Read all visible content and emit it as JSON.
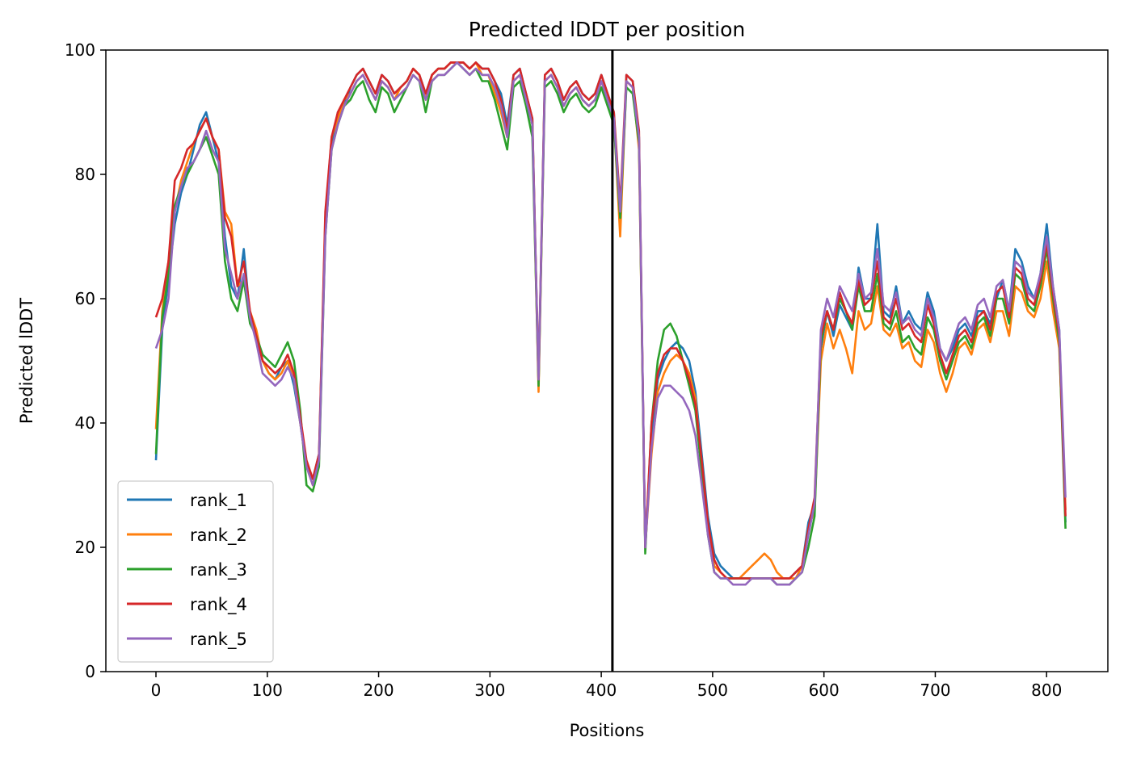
{
  "chart_data": {
    "type": "line",
    "title": "Predicted lDDT per position",
    "xlabel": "Positions",
    "ylabel": "Predicted lDDT",
    "xlim": [
      -45,
      855
    ],
    "ylim": [
      0,
      100
    ],
    "xticks": [
      0,
      100,
      200,
      300,
      400,
      500,
      600,
      700,
      800
    ],
    "yticks": [
      0,
      20,
      40,
      60,
      80,
      100
    ],
    "grid": false,
    "legend_position": "lower-left",
    "divider_x": 410,
    "divider_color": "#000000",
    "x_start": 0,
    "x_end": 817,
    "series": [
      {
        "name": "rank_1",
        "color": "#1f77b4",
        "values": [
          34,
          55,
          63,
          72,
          77,
          80,
          84,
          88,
          90,
          86,
          82,
          70,
          62,
          60,
          68,
          57,
          54,
          50,
          48,
          47,
          49,
          50,
          46,
          40,
          33,
          31,
          35,
          72,
          85,
          90,
          91,
          94,
          96,
          97,
          95,
          93,
          96,
          95,
          93,
          94,
          95,
          97,
          96,
          93,
          96,
          97,
          97,
          98,
          98,
          98,
          97,
          98,
          97,
          97,
          95,
          93,
          88,
          96,
          97,
          93,
          89,
          46,
          96,
          97,
          95,
          92,
          94,
          95,
          93,
          92,
          93,
          96,
          93,
          90,
          72,
          96,
          95,
          86,
          20,
          38,
          47,
          50,
          52,
          53,
          52,
          50,
          45,
          35,
          25,
          19,
          17,
          16,
          15,
          15,
          15,
          15,
          15,
          15,
          15,
          15,
          15,
          15,
          16,
          17,
          24,
          27,
          52,
          58,
          54,
          59,
          57,
          55,
          65,
          60,
          60,
          72,
          58,
          57,
          62,
          56,
          58,
          56,
          55,
          61,
          58,
          52,
          50,
          52,
          55,
          56,
          54,
          58,
          58,
          56,
          60,
          63,
          58,
          68,
          66,
          62,
          60,
          64,
          72,
          62,
          55,
          24
        ]
      },
      {
        "name": "rank_2",
        "color": "#ff7f0e",
        "values": [
          39,
          58,
          66,
          74,
          79,
          82,
          85,
          87,
          89,
          86,
          84,
          74,
          72,
          62,
          63,
          58,
          55,
          50,
          48,
          47,
          48,
          50,
          47,
          40,
          33,
          30,
          34,
          73,
          86,
          89,
          92,
          93,
          95,
          96,
          94,
          92,
          95,
          94,
          92,
          94,
          95,
          97,
          96,
          92,
          96,
          97,
          97,
          98,
          98,
          98,
          97,
          98,
          96,
          96,
          93,
          90,
          86,
          95,
          96,
          92,
          88,
          45,
          95,
          96,
          94,
          91,
          93,
          94,
          92,
          91,
          92,
          95,
          92,
          89,
          70,
          95,
          94,
          84,
          20,
          35,
          45,
          48,
          50,
          51,
          50,
          48,
          44,
          33,
          23,
          17,
          16,
          15,
          15,
          15,
          16,
          17,
          18,
          19,
          18,
          16,
          15,
          15,
          15,
          17,
          23,
          26,
          50,
          56,
          52,
          55,
          52,
          48,
          58,
          55,
          56,
          62,
          55,
          54,
          56,
          52,
          53,
          50,
          49,
          55,
          53,
          48,
          45,
          48,
          52,
          53,
          51,
          55,
          56,
          53,
          58,
          58,
          54,
          62,
          61,
          58,
          57,
          60,
          66,
          58,
          52,
          26
        ]
      },
      {
        "name": "rank_3",
        "color": "#2ca02c",
        "values": [
          35,
          57,
          64,
          75,
          78,
          80,
          82,
          84,
          86,
          83,
          80,
          66,
          60,
          58,
          63,
          56,
          54,
          51,
          50,
          49,
          51,
          53,
          50,
          42,
          30,
          29,
          33,
          70,
          84,
          88,
          91,
          92,
          94,
          95,
          92,
          90,
          94,
          93,
          90,
          92,
          94,
          96,
          95,
          90,
          95,
          96,
          96,
          97,
          98,
          97,
          96,
          97,
          95,
          95,
          92,
          88,
          84,
          94,
          95,
          91,
          86,
          46,
          94,
          95,
          93,
          90,
          92,
          93,
          91,
          90,
          91,
          94,
          91,
          88,
          73,
          94,
          93,
          85,
          19,
          40,
          50,
          55,
          56,
          54,
          50,
          46,
          42,
          32,
          22,
          16,
          15,
          15,
          15,
          15,
          15,
          15,
          15,
          15,
          15,
          14,
          14,
          14,
          15,
          16,
          20,
          25,
          53,
          58,
          55,
          60,
          58,
          55,
          62,
          58,
          58,
          64,
          56,
          55,
          58,
          53,
          54,
          52,
          51,
          57,
          55,
          50,
          47,
          50,
          53,
          54,
          52,
          56,
          57,
          54,
          60,
          60,
          56,
          64,
          63,
          59,
          58,
          62,
          68,
          60,
          53,
          23
        ]
      },
      {
        "name": "rank_4",
        "color": "#d62728",
        "values": [
          57,
          60,
          66,
          79,
          81,
          84,
          85,
          87,
          89,
          86,
          84,
          73,
          70,
          62,
          66,
          58,
          54,
          50,
          49,
          48,
          49,
          51,
          48,
          41,
          34,
          31,
          35,
          74,
          86,
          90,
          92,
          94,
          96,
          97,
          95,
          93,
          96,
          95,
          93,
          94,
          95,
          97,
          96,
          93,
          96,
          97,
          97,
          98,
          98,
          98,
          97,
          98,
          97,
          97,
          95,
          92,
          87,
          96,
          97,
          93,
          89,
          47,
          96,
          97,
          95,
          92,
          94,
          95,
          93,
          92,
          93,
          96,
          93,
          90,
          75,
          96,
          95,
          87,
          20,
          40,
          48,
          51,
          52,
          52,
          50,
          47,
          43,
          34,
          24,
          18,
          16,
          15,
          15,
          15,
          15,
          15,
          15,
          15,
          15,
          15,
          15,
          15,
          16,
          17,
          23,
          28,
          54,
          58,
          55,
          61,
          58,
          56,
          63,
          59,
          60,
          66,
          57,
          56,
          60,
          55,
          56,
          54,
          53,
          59,
          56,
          51,
          48,
          51,
          54,
          55,
          53,
          57,
          58,
          55,
          61,
          62,
          57,
          65,
          64,
          60,
          59,
          63,
          69,
          61,
          54,
          25
        ]
      },
      {
        "name": "rank_5",
        "color": "#9467bd",
        "values": [
          52,
          55,
          60,
          74,
          78,
          81,
          82,
          84,
          87,
          84,
          82,
          68,
          64,
          60,
          64,
          57,
          53,
          48,
          47,
          46,
          47,
          49,
          47,
          40,
          33,
          30,
          34,
          70,
          84,
          88,
          91,
          93,
          95,
          96,
          94,
          92,
          95,
          94,
          92,
          93,
          94,
          96,
          95,
          92,
          95,
          96,
          96,
          97,
          98,
          97,
          96,
          97,
          96,
          96,
          94,
          91,
          86,
          95,
          96,
          92,
          88,
          47,
          95,
          96,
          94,
          91,
          93,
          94,
          92,
          91,
          92,
          95,
          92,
          89,
          74,
          95,
          94,
          86,
          20,
          36,
          44,
          46,
          46,
          45,
          44,
          42,
          38,
          30,
          22,
          16,
          15,
          15,
          14,
          14,
          14,
          15,
          15,
          15,
          15,
          14,
          14,
          14,
          15,
          16,
          22,
          27,
          55,
          60,
          57,
          62,
          60,
          58,
          64,
          60,
          61,
          68,
          59,
          58,
          61,
          56,
          57,
          55,
          54,
          60,
          57,
          52,
          50,
          53,
          56,
          57,
          55,
          59,
          60,
          57,
          62,
          63,
          58,
          66,
          65,
          61,
          60,
          64,
          70,
          62,
          55,
          28
        ]
      }
    ]
  }
}
